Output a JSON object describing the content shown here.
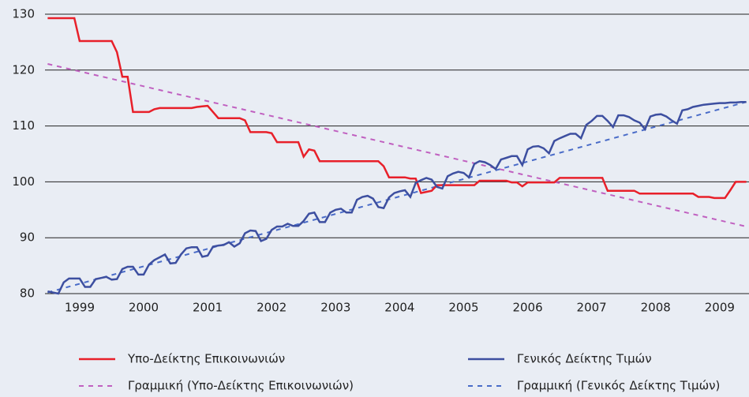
{
  "chart_data": {
    "type": "line",
    "categories": [
      null,
      null,
      null,
      null,
      null,
      null,
      "1999",
      null,
      null,
      null,
      null,
      null,
      null,
      null,
      null,
      null,
      null,
      null,
      "2000",
      null,
      null,
      null,
      null,
      null,
      null,
      null,
      null,
      null,
      null,
      null,
      "2001",
      null,
      null,
      null,
      null,
      null,
      null,
      null,
      null,
      null,
      null,
      null,
      "2002",
      null,
      null,
      null,
      null,
      null,
      null,
      null,
      null,
      null,
      null,
      null,
      "2003",
      null,
      null,
      null,
      null,
      null,
      null,
      null,
      null,
      null,
      null,
      null,
      "2004",
      null,
      null,
      null,
      null,
      null,
      null,
      null,
      null,
      null,
      null,
      null,
      "2005",
      null,
      null,
      null,
      null,
      null,
      null,
      null,
      null,
      null,
      null,
      null,
      "2006",
      null,
      null,
      null,
      null,
      null,
      null,
      null,
      null,
      null,
      null,
      null,
      "2007",
      null,
      null,
      null,
      null,
      null,
      null,
      null,
      null,
      null,
      null,
      null,
      "2008",
      null,
      null,
      null,
      null,
      null,
      null,
      null,
      null,
      null,
      null,
      null,
      "2009",
      null,
      null,
      null,
      null,
      null
    ],
    "series": [
      {
        "name": "Υπο-Δείκτης Επικοινωνιών",
        "color": "#e8202a",
        "values": [
          129.3,
          129.3,
          129.3,
          129.3,
          129.3,
          129.3,
          125.2,
          125.2,
          125.2,
          125.2,
          125.2,
          125.2,
          125.2,
          123.2,
          118.8,
          118.8,
          112.5,
          112.5,
          112.5,
          112.5,
          113.0,
          113.2,
          113.2,
          113.2,
          113.2,
          113.2,
          113.2,
          113.2,
          113.4,
          113.5,
          113.6,
          112.5,
          111.4,
          111.4,
          111.4,
          111.4,
          111.4,
          111.0,
          108.9,
          108.9,
          108.9,
          108.9,
          108.7,
          107.1,
          107.1,
          107.1,
          107.1,
          107.1,
          104.5,
          105.8,
          105.6,
          103.7,
          103.7,
          103.7,
          103.7,
          103.7,
          103.7,
          103.7,
          103.7,
          103.7,
          103.7,
          103.7,
          103.7,
          102.8,
          100.8,
          100.8,
          100.8,
          100.8,
          100.6,
          100.6,
          98.0,
          98.2,
          98.4,
          99.4,
          99.4,
          99.4,
          99.4,
          99.4,
          99.4,
          99.4,
          99.4,
          100.2,
          100.2,
          100.2,
          100.2,
          100.2,
          100.2,
          99.9,
          99.9,
          99.2,
          99.9,
          99.9,
          99.9,
          99.9,
          99.9,
          99.9,
          100.7,
          100.7,
          100.7,
          100.7,
          100.7,
          100.7,
          100.7,
          100.7,
          100.7,
          98.4,
          98.4,
          98.4,
          98.4,
          98.4,
          98.4,
          97.9,
          97.9,
          97.9,
          97.9,
          97.9,
          97.9,
          97.9,
          97.9,
          97.9,
          97.9,
          97.9,
          97.3,
          97.3,
          97.3,
          97.1,
          97.1,
          97.1,
          98.5,
          100.0,
          100.0,
          100.0
        ]
      },
      {
        "name": "Γενικός Δείκτης Τιμών",
        "color": "#3d4fa0",
        "values": [
          80.4,
          80.2,
          80.0,
          82.0,
          82.7,
          82.7,
          82.7,
          81.2,
          81.2,
          82.6,
          82.8,
          83.0,
          82.5,
          82.6,
          84.4,
          84.8,
          84.8,
          83.4,
          83.4,
          85.2,
          86.0,
          86.5,
          87.0,
          85.4,
          85.5,
          87.0,
          88.1,
          88.3,
          88.3,
          86.6,
          86.8,
          88.4,
          88.6,
          88.7,
          89.2,
          88.4,
          89.0,
          90.8,
          91.3,
          91.2,
          89.4,
          89.8,
          91.4,
          92.0,
          92.0,
          92.5,
          92.1,
          92.1,
          93.0,
          94.3,
          94.5,
          92.8,
          92.8,
          94.5,
          95.0,
          95.2,
          94.5,
          94.5,
          96.8,
          97.3,
          97.5,
          97.0,
          95.5,
          95.3,
          97.2,
          98.0,
          98.3,
          98.5,
          97.3,
          99.8,
          100.3,
          100.7,
          100.4,
          99.1,
          98.8,
          101.0,
          101.5,
          101.8,
          101.6,
          100.8,
          103.2,
          103.7,
          103.5,
          103.0,
          102.3,
          104.0,
          104.3,
          104.6,
          104.6,
          103.0,
          105.8,
          106.3,
          106.4,
          106.0,
          105.1,
          107.3,
          107.8,
          108.2,
          108.6,
          108.6,
          107.8,
          110.2,
          110.9,
          111.8,
          111.8,
          110.9,
          109.8,
          111.9,
          111.9,
          111.6,
          111.0,
          110.6,
          109.4,
          111.7,
          112.0,
          112.1,
          111.7,
          111.0,
          110.4,
          112.8,
          113.0,
          113.4,
          113.6,
          113.8,
          113.9,
          114.0,
          114.1,
          114.1,
          114.2,
          114.2,
          114.3,
          114.3
        ]
      }
    ],
    "trendlines": [
      {
        "name": "Γραμμική (Υπο-Δείκτης Επικοινωνιών)",
        "color": "#c060c0",
        "from": 121.1,
        "to": 92.0
      },
      {
        "name": "Γραμμική (Γενικός Δείκτης Τιμών)",
        "color": "#4a6cc8",
        "from": 80.2,
        "to": 114.3
      }
    ],
    "ylim": [
      80,
      130
    ],
    "yticks": [
      80,
      90,
      100,
      110,
      120,
      130
    ],
    "grid": true
  }
}
